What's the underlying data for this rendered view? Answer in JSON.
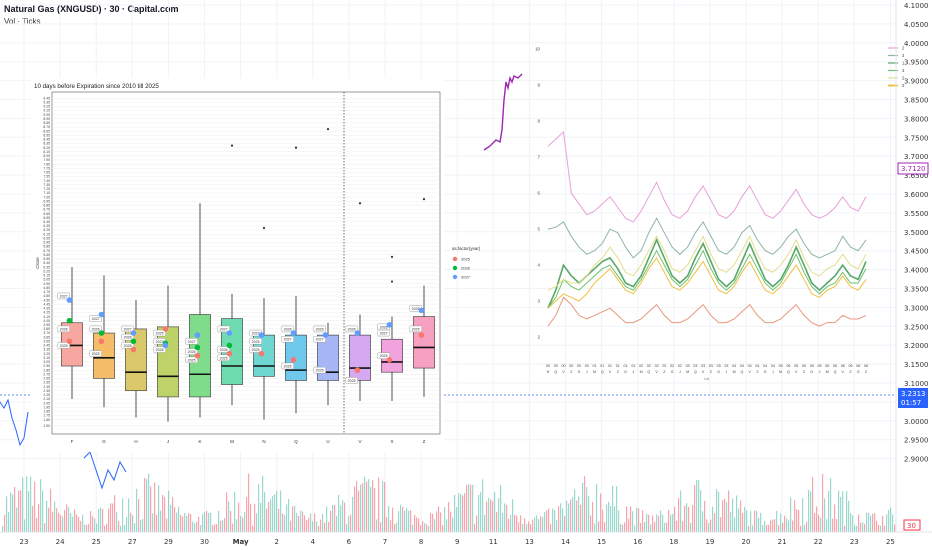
{
  "header": {
    "title": "Natural Gas (XNGUSD) · 30 · Capital.com",
    "indicator": "Vol · Ticks"
  },
  "price_scale": {
    "labels": [
      "4.1000",
      "4.0500",
      "4.0000",
      "3.9500",
      "3.9000",
      "3.8500",
      "3.8000",
      "3.7500",
      "3.7000",
      "3.6500",
      "3.6000",
      "3.5500",
      "3.5000",
      "3.4500",
      "3.4000",
      "3.3500",
      "3.3000",
      "3.2500",
      "3.2000",
      "3.1500",
      "3.1000",
      "3.0500",
      "3.0000",
      "2.9500",
      "2.9000"
    ],
    "badge_purple": "3.7120",
    "badge_blue_price": "3.2313",
    "badge_blue_time": "01:57",
    "badge_volume": "30",
    "colors": {
      "purple": "#9c27b0",
      "blue": "#2962ff",
      "red": "#f23645",
      "green": "#22ab94"
    }
  },
  "time_axis": {
    "labels": [
      "23",
      "24",
      "25",
      "27",
      "29",
      "30",
      "May",
      "2",
      "4",
      "6",
      "7",
      "8",
      "9",
      "11",
      "13",
      "14",
      "15",
      "16",
      "18",
      "19",
      "20",
      "21",
      "22",
      "23",
      "25"
    ]
  },
  "chart_data": [
    {
      "type": "box",
      "title": "10 days before Expiration since 2010 till 2025",
      "ylabel": "Close",
      "ylim": [
        1.3,
        9.6
      ],
      "yticks": [
        1.5,
        1.65,
        1.75,
        1.85,
        1.95,
        2.05,
        2.15,
        2.25,
        2.35,
        2.45,
        2.55,
        2.65,
        2.75,
        2.85,
        2.95,
        3.05,
        3.15,
        3.25,
        3.35,
        3.45,
        3.55,
        3.65,
        3.75,
        3.85,
        3.95,
        4.05,
        4.15,
        4.25,
        4.35,
        4.45,
        4.55,
        4.65,
        4.75,
        4.85,
        4.95,
        5.05,
        5.15,
        5.25,
        5.35,
        5.45,
        5.55,
        5.65,
        5.75,
        5.85,
        5.95,
        6.05,
        6.15,
        6.25,
        6.35,
        6.45,
        6.55,
        6.65,
        6.75,
        6.85,
        6.95,
        7.05,
        7.15,
        7.25,
        7.35,
        7.45,
        7.55,
        7.65,
        7.75,
        7.85,
        7.95,
        8.05,
        8.15,
        8.25,
        8.35,
        8.45,
        8.55,
        8.65,
        8.75,
        8.85,
        8.95,
        9.05,
        9.15,
        9.25,
        9.35,
        9.45
      ],
      "categories": [
        "F",
        "G",
        "H",
        "J",
        "K",
        "M",
        "N",
        "Q",
        "U",
        "V",
        "X",
        "Z"
      ],
      "box_colors": [
        "#f8a7a0",
        "#f5bd6a",
        "#d9c96a",
        "#bdd36a",
        "#7fdc8a",
        "#6fdcb0",
        "#6fd6d0",
        "#6fc9ec",
        "#a7b7f5",
        "#d5a9f2",
        "#f2a2dd",
        "#f7a0c0"
      ],
      "boxes": [
        {
          "cat": "F",
          "whislo": 2.15,
          "q1": 2.95,
          "med": 3.45,
          "q3": 4.0,
          "whishi": 5.35,
          "fliers": []
        },
        {
          "cat": "G",
          "whislo": 1.95,
          "q1": 2.65,
          "med": 3.15,
          "q3": 3.75,
          "whishi": 5.15,
          "fliers": []
        },
        {
          "cat": "H",
          "whislo": 1.7,
          "q1": 2.35,
          "med": 2.8,
          "q3": 3.85,
          "whishi": 4.55,
          "fliers": []
        },
        {
          "cat": "J",
          "whislo": 1.6,
          "q1": 2.2,
          "med": 2.7,
          "q3": 3.9,
          "whishi": 4.9,
          "fliers": []
        },
        {
          "cat": "K",
          "whislo": 1.7,
          "q1": 2.2,
          "med": 2.75,
          "q3": 4.2,
          "whishi": 6.9,
          "fliers": []
        },
        {
          "cat": "M",
          "whislo": 2.0,
          "q1": 2.5,
          "med": 2.95,
          "q3": 4.1,
          "whishi": 4.7,
          "fliers": [
            8.3
          ]
        },
        {
          "cat": "N",
          "whislo": 1.65,
          "q1": 2.7,
          "med": 2.95,
          "q3": 3.7,
          "whishi": 4.6,
          "fliers": [
            6.3
          ]
        },
        {
          "cat": "Q",
          "whislo": 1.8,
          "q1": 2.6,
          "med": 2.85,
          "q3": 3.7,
          "whishi": 4.65,
          "fliers": [
            8.25
          ]
        },
        {
          "cat": "U",
          "whislo": 2.0,
          "q1": 2.6,
          "med": 2.8,
          "q3": 3.7,
          "whishi": 4.0,
          "fliers": [
            8.7
          ]
        },
        {
          "cat": "V",
          "whislo": 2.1,
          "q1": 2.6,
          "med": 2.9,
          "q3": 3.7,
          "whishi": 4.2,
          "fliers": [
            6.9
          ]
        },
        {
          "cat": "X",
          "whislo": 2.1,
          "q1": 2.8,
          "med": 3.05,
          "q3": 3.6,
          "whishi": 4.15,
          "fliers": [
            5.0,
            5.6
          ]
        },
        {
          "cat": "Z",
          "whislo": 2.2,
          "q1": 2.9,
          "med": 3.4,
          "q3": 4.15,
          "whishi": 4.9,
          "fliers": [
            7.0
          ]
        }
      ],
      "legend_title": "as.factor(year)",
      "legend": [
        {
          "name": "2025",
          "color": "#f8766d"
        },
        {
          "name": "2026",
          "color": "#00ba38"
        },
        {
          "name": "2027",
          "color": "#619cff"
        }
      ],
      "dots": [
        {
          "cat": "F",
          "year": "2025",
          "y": 3.55
        },
        {
          "cat": "F",
          "year": "2026",
          "y": 4.05
        },
        {
          "cat": "F",
          "year": "2027",
          "y": 4.55
        },
        {
          "cat": "G",
          "year": "2025",
          "y": 3.55
        },
        {
          "cat": "G",
          "year": "2026",
          "y": 3.75
        },
        {
          "cat": "G",
          "year": "2027",
          "y": 4.2
        },
        {
          "cat": "H",
          "year": "2025",
          "y": 3.35
        },
        {
          "cat": "H",
          "year": "2026",
          "y": 3.55
        },
        {
          "cat": "H",
          "year": "2027",
          "y": 3.75
        },
        {
          "cat": "J",
          "year": "2025",
          "y": 3.85
        },
        {
          "cat": "J",
          "year": "2026",
          "y": 3.5
        },
        {
          "cat": "J",
          "year": "2027",
          "y": 3.45
        },
        {
          "cat": "K",
          "year": "2025",
          "y": 3.2
        },
        {
          "cat": "K",
          "year": "2026",
          "y": 3.4
        },
        {
          "cat": "K",
          "year": "2027",
          "y": 3.7
        },
        {
          "cat": "M",
          "year": "2025",
          "y": 3.25
        },
        {
          "cat": "M",
          "year": "2026",
          "y": 3.45
        },
        {
          "cat": "M",
          "year": "2027",
          "y": 3.75
        },
        {
          "cat": "N",
          "year": "2025",
          "y": 3.25
        },
        {
          "cat": "N",
          "year": "2027",
          "y": 3.7
        },
        {
          "cat": "Q",
          "year": "2025",
          "y": 3.1
        },
        {
          "cat": "Q",
          "year": "2027",
          "y": 3.75
        },
        {
          "cat": "U",
          "year": "2027",
          "y": 3.7
        },
        {
          "cat": "V",
          "year": "2025",
          "y": 2.85
        },
        {
          "cat": "V",
          "year": "2027",
          "y": 3.75
        },
        {
          "cat": "X",
          "year": "2025",
          "y": 3.1
        },
        {
          "cat": "X",
          "year": "2027",
          "y": 3.95
        },
        {
          "cat": "Z",
          "year": "2025",
          "y": 3.7
        },
        {
          "cat": "Z",
          "year": "2027",
          "y": 4.3
        }
      ],
      "labels": [
        {
          "cat": "F",
          "text": "2027",
          "y": 4.65
        },
        {
          "cat": "F",
          "text": "2026",
          "y": 3.85
        },
        {
          "cat": "F",
          "text": "2025",
          "y": 3.45
        },
        {
          "cat": "G",
          "text": "2027",
          "y": 4.1
        },
        {
          "cat": "G",
          "text": "2026",
          "y": 3.85
        },
        {
          "cat": "G",
          "text": "2025",
          "y": 3.25
        },
        {
          "cat": "H",
          "text": "2027",
          "y": 3.85
        },
        {
          "cat": "H",
          "text": "2026",
          "y": 3.65
        },
        {
          "cat": "H",
          "text": "2025",
          "y": 3.45
        },
        {
          "cat": "J",
          "text": "2025",
          "y": 3.75
        },
        {
          "cat": "J",
          "text": "2027",
          "y": 3.55
        },
        {
          "cat": "J",
          "text": "2026",
          "y": 3.35
        },
        {
          "cat": "K",
          "text": "2027",
          "y": 3.55
        },
        {
          "cat": "K",
          "text": "2026",
          "y": 3.3
        },
        {
          "cat": "K",
          "text": "2025",
          "y": 3.1
        },
        {
          "cat": "M",
          "text": "2027",
          "y": 3.85
        },
        {
          "cat": "M",
          "text": "2026",
          "y": 3.35
        },
        {
          "cat": "M",
          "text": "2025",
          "y": 3.15
        },
        {
          "cat": "N",
          "text": "2027",
          "y": 3.75
        },
        {
          "cat": "N",
          "text": "2026",
          "y": 3.55
        },
        {
          "cat": "N",
          "text": "2025",
          "y": 3.35
        },
        {
          "cat": "Q",
          "text": "2026",
          "y": 3.85
        },
        {
          "cat": "Q",
          "text": "2027",
          "y": 3.6
        },
        {
          "cat": "Q",
          "text": "2025",
          "y": 2.95
        },
        {
          "cat": "U",
          "text": "2026",
          "y": 3.85
        },
        {
          "cat": "U",
          "text": "2027",
          "y": 3.6
        },
        {
          "cat": "U",
          "text": "2025",
          "y": 2.85
        },
        {
          "cat": "V",
          "text": "2026",
          "y": 3.85
        },
        {
          "cat": "V",
          "text": "2025",
          "y": 2.6
        },
        {
          "cat": "X",
          "text": "2026",
          "y": 3.9
        },
        {
          "cat": "X",
          "text": "2027",
          "y": 3.75
        },
        {
          "cat": "X",
          "text": "2025",
          "y": 3.2
        },
        {
          "cat": "Z",
          "text": "2026",
          "y": 4.35
        },
        {
          "cat": "Z",
          "text": "2025",
          "y": 3.85
        }
      ],
      "vline_after": "U"
    },
    {
      "type": "line",
      "ylim": [
        1.5,
        10.2
      ],
      "yticks": [
        2,
        3,
        4,
        5,
        6,
        7,
        8,
        9,
        10
      ],
      "x_top": [
        "00",
        "00",
        "00",
        "00",
        "00",
        "00",
        "01",
        "01",
        "01",
        "01",
        "01",
        "01",
        "02",
        "02",
        "02",
        "02",
        "02",
        "02",
        "03",
        "03",
        "03",
        "03",
        "03",
        "03",
        "04",
        "04",
        "04",
        "04",
        "04",
        "04",
        "05",
        "05",
        "05",
        "05",
        "05",
        "05",
        "06",
        "06",
        "06",
        "06",
        "06",
        "06"
      ],
      "x_bottom": [
        "H",
        "Q",
        "V",
        "Z",
        "G",
        "J",
        "M",
        "Q",
        "V",
        "Z",
        "G",
        "J",
        "M",
        "Q",
        "V",
        "Z",
        "G",
        "J",
        "M",
        "Q",
        "V",
        "Z",
        "G",
        "J",
        "M",
        "Q",
        "V",
        "Z",
        "G",
        "J",
        "M",
        "Q",
        "V",
        "Z",
        "G",
        "J",
        "M",
        "Q",
        "V",
        "Z",
        "G",
        "Z"
      ],
      "xlabel": "t.d.",
      "legend": [
        "2",
        "3",
        "1",
        "3",
        "2",
        "3"
      ],
      "series": [
        {
          "name": "",
          "color": "#e8a0d8",
          "values": [
            7.3,
            7.5,
            7.7,
            6.0,
            5.7,
            5.4,
            5.5,
            5.7,
            5.9,
            5.6,
            5.3,
            5.2,
            5.5,
            5.9,
            6.3,
            5.8,
            5.4,
            5.3,
            5.5,
            5.9,
            6.2,
            5.8,
            5.4,
            5.3,
            5.5,
            5.9,
            6.2,
            5.8,
            5.4,
            5.3,
            5.5,
            5.8,
            6.1,
            5.7,
            5.4,
            5.3,
            5.4,
            5.6,
            5.9,
            5.6,
            5.5,
            5.9
          ]
        },
        {
          "name": "",
          "color": "#8fb4a4",
          "values": [
            5.0,
            5.05,
            5.2,
            4.8,
            4.5,
            4.3,
            4.4,
            4.6,
            5.0,
            4.9,
            4.5,
            4.2,
            4.4,
            4.9,
            5.3,
            4.9,
            4.5,
            4.3,
            4.5,
            4.9,
            5.2,
            4.8,
            4.4,
            4.3,
            4.5,
            4.9,
            5.1,
            4.7,
            4.4,
            4.3,
            4.5,
            4.8,
            5.0,
            4.6,
            4.3,
            4.2,
            4.3,
            4.4,
            4.8,
            4.5,
            4.4,
            4.7
          ]
        },
        {
          "name": "",
          "color": "#5aa869",
          "values": [
            2.8,
            3.3,
            4.0,
            3.7,
            3.5,
            3.7,
            3.9,
            4.1,
            4.2,
            3.9,
            3.5,
            3.4,
            3.7,
            4.2,
            4.7,
            4.2,
            3.7,
            3.5,
            3.7,
            4.2,
            4.6,
            4.1,
            3.6,
            3.4,
            3.6,
            4.1,
            4.6,
            4.1,
            3.6,
            3.4,
            3.6,
            4.0,
            4.5,
            4.0,
            3.5,
            3.3,
            3.5,
            3.7,
            4.0,
            3.7,
            3.6,
            4.1
          ]
        },
        {
          "name": "",
          "color": "#6ec36e",
          "values": [
            2.8,
            3.1,
            3.6,
            3.4,
            3.3,
            3.5,
            3.7,
            3.9,
            4.0,
            3.7,
            3.4,
            3.3,
            3.6,
            4.0,
            4.4,
            4.0,
            3.6,
            3.4,
            3.6,
            4.0,
            4.4,
            3.9,
            3.5,
            3.3,
            3.5,
            3.9,
            4.3,
            3.9,
            3.5,
            3.3,
            3.5,
            3.9,
            4.3,
            3.8,
            3.4,
            3.2,
            3.4,
            3.5,
            3.8,
            3.5,
            3.5,
            3.9
          ]
        },
        {
          "name": "",
          "color": "#e3df8a",
          "values": [
            3.3,
            3.4,
            3.6,
            3.5,
            3.5,
            3.7,
            4.0,
            4.2,
            4.5,
            4.2,
            3.8,
            3.7,
            4.0,
            4.4,
            4.8,
            4.4,
            3.9,
            3.8,
            4.0,
            4.4,
            4.8,
            4.3,
            3.9,
            3.8,
            4.0,
            4.4,
            4.8,
            4.3,
            3.9,
            3.8,
            4.0,
            4.3,
            4.7,
            4.2,
            3.8,
            3.7,
            3.9,
            4.0,
            4.3,
            4.0,
            3.9,
            4.3
          ]
        },
        {
          "name": "",
          "color": "#f0c040",
          "values": [
            2.8,
            3.0,
            3.2,
            3.1,
            3.0,
            3.2,
            3.5,
            3.7,
            3.9,
            3.6,
            3.3,
            3.2,
            3.5,
            3.9,
            4.2,
            3.8,
            3.4,
            3.3,
            3.5,
            3.8,
            4.1,
            3.7,
            3.3,
            3.2,
            3.4,
            3.8,
            4.1,
            3.7,
            3.3,
            3.2,
            3.4,
            3.7,
            4.0,
            3.6,
            3.2,
            3.1,
            3.3,
            3.4,
            3.7,
            3.4,
            3.3,
            3.6
          ]
        },
        {
          "name": "",
          "color": "#e8987c",
          "values": [
            2.3,
            2.6,
            3.1,
            2.9,
            2.6,
            2.5,
            2.6,
            2.7,
            2.8,
            2.6,
            2.4,
            2.4,
            2.5,
            2.7,
            2.9,
            2.6,
            2.4,
            2.4,
            2.5,
            2.7,
            2.9,
            2.6,
            2.4,
            2.4,
            2.5,
            2.7,
            2.9,
            2.6,
            2.4,
            2.4,
            2.5,
            2.7,
            2.9,
            2.6,
            2.4,
            2.3,
            2.4,
            2.4,
            2.6,
            2.5,
            2.5,
            2.6
          ]
        }
      ]
    }
  ]
}
